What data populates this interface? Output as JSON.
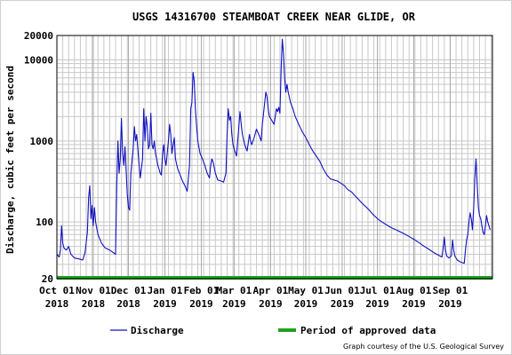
{
  "chart_data": {
    "type": "line",
    "title": "USGS 14316700 STEAMBOAT CREEK NEAR GLIDE, OR",
    "ylabel": "Discharge, cubic feet per second",
    "xlabel": "",
    "yscale": "log",
    "ylim": [
      20,
      20000
    ],
    "ytick_labels": [
      "20000",
      "10000",
      "1000",
      "100",
      "20"
    ],
    "ytick_values": [
      20000,
      10000,
      1000,
      100,
      20
    ],
    "xlim": [
      "2018-10-01",
      "2019-10-07"
    ],
    "xticks": [
      {
        "date": "2018-10-01",
        "line1": "Oct 01",
        "line2": "2018"
      },
      {
        "date": "2018-11-01",
        "line1": "Nov 01",
        "line2": "2018"
      },
      {
        "date": "2018-12-01",
        "line1": "Dec 01",
        "line2": "2018"
      },
      {
        "date": "2019-01-01",
        "line1": "Jan 01",
        "line2": "2019"
      },
      {
        "date": "2019-02-01",
        "line1": "Feb 01",
        "line2": "2019"
      },
      {
        "date": "2019-03-01",
        "line1": "Mar 01",
        "line2": "2019"
      },
      {
        "date": "2019-04-01",
        "line1": "Apr 01",
        "line2": "2019"
      },
      {
        "date": "2019-05-01",
        "line1": "May 01",
        "line2": "2019"
      },
      {
        "date": "2019-06-01",
        "line1": "Jun 01",
        "line2": "2019"
      },
      {
        "date": "2019-07-01",
        "line1": "Jul 01",
        "line2": "2019"
      },
      {
        "date": "2019-08-01",
        "line1": "Aug 01",
        "line2": "2019"
      },
      {
        "date": "2019-09-01",
        "line1": "Sep 01",
        "line2": "2019"
      }
    ],
    "grid": true,
    "legend_position": "bottom",
    "series": [
      {
        "name": "Discharge",
        "color": "#1010c0",
        "points": [
          [
            "2018-10-01",
            40
          ],
          [
            "2018-10-03",
            37
          ],
          [
            "2018-10-04",
            45
          ],
          [
            "2018-10-05",
            90
          ],
          [
            "2018-10-06",
            55
          ],
          [
            "2018-10-07",
            48
          ],
          [
            "2018-10-09",
            45
          ],
          [
            "2018-10-11",
            50
          ],
          [
            "2018-10-13",
            40
          ],
          [
            "2018-10-16",
            36
          ],
          [
            "2018-10-20",
            35
          ],
          [
            "2018-10-23",
            34
          ],
          [
            "2018-10-25",
            42
          ],
          [
            "2018-10-27",
            75
          ],
          [
            "2018-10-28",
            200
          ],
          [
            "2018-10-29",
            280
          ],
          [
            "2018-10-30",
            110
          ],
          [
            "2018-10-31",
            160
          ],
          [
            "2018-11-01",
            90
          ],
          [
            "2018-11-02",
            150
          ],
          [
            "2018-11-03",
            100
          ],
          [
            "2018-11-05",
            70
          ],
          [
            "2018-11-08",
            55
          ],
          [
            "2018-11-11",
            48
          ],
          [
            "2018-11-15",
            45
          ],
          [
            "2018-11-18",
            42
          ],
          [
            "2018-11-20",
            40
          ],
          [
            "2018-11-21",
            300
          ],
          [
            "2018-11-22",
            1000
          ],
          [
            "2018-11-23",
            400
          ],
          [
            "2018-11-24",
            600
          ],
          [
            "2018-11-25",
            1900
          ],
          [
            "2018-11-26",
            700
          ],
          [
            "2018-11-27",
            500
          ],
          [
            "2018-11-28",
            850
          ],
          [
            "2018-11-30",
            220
          ],
          [
            "2018-12-01",
            150
          ],
          [
            "2018-12-02",
            140
          ],
          [
            "2018-12-03",
            400
          ],
          [
            "2018-12-05",
            800
          ],
          [
            "2018-12-06",
            1500
          ],
          [
            "2018-12-07",
            1000
          ],
          [
            "2018-12-08",
            1200
          ],
          [
            "2018-12-10",
            500
          ],
          [
            "2018-12-11",
            350
          ],
          [
            "2018-12-13",
            600
          ],
          [
            "2018-12-14",
            2500
          ],
          [
            "2018-12-15",
            1000
          ],
          [
            "2018-12-16",
            2000
          ],
          [
            "2018-12-17",
            1500
          ],
          [
            "2018-12-18",
            800
          ],
          [
            "2018-12-19",
            900
          ],
          [
            "2018-12-20",
            2200
          ],
          [
            "2018-12-21",
            900
          ],
          [
            "2018-12-22",
            800
          ],
          [
            "2018-12-23",
            1000
          ],
          [
            "2018-12-24",
            700
          ],
          [
            "2018-12-25",
            600
          ],
          [
            "2018-12-26",
            500
          ],
          [
            "2018-12-27",
            450
          ],
          [
            "2018-12-28",
            400
          ],
          [
            "2018-12-29",
            380
          ],
          [
            "2018-12-30",
            700
          ],
          [
            "2018-12-31",
            900
          ],
          [
            "2019-01-01",
            600
          ],
          [
            "2019-01-02",
            500
          ],
          [
            "2019-01-04",
            1000
          ],
          [
            "2019-01-05",
            1600
          ],
          [
            "2019-01-06",
            1200
          ],
          [
            "2019-01-07",
            700
          ],
          [
            "2019-01-08",
            900
          ],
          [
            "2019-01-09",
            1100
          ],
          [
            "2019-01-10",
            600
          ],
          [
            "2019-01-12",
            450
          ],
          [
            "2019-01-14",
            380
          ],
          [
            "2019-01-16",
            320
          ],
          [
            "2019-01-18",
            280
          ],
          [
            "2019-01-20",
            240
          ],
          [
            "2019-01-22",
            500
          ],
          [
            "2019-01-23",
            2500
          ],
          [
            "2019-01-24",
            3000
          ],
          [
            "2019-01-25",
            7000
          ],
          [
            "2019-01-26",
            5500
          ],
          [
            "2019-01-27",
            2500
          ],
          [
            "2019-01-28",
            1500
          ],
          [
            "2019-01-29",
            1000
          ],
          [
            "2019-01-31",
            700
          ],
          [
            "2019-02-02",
            600
          ],
          [
            "2019-02-04",
            500
          ],
          [
            "2019-02-06",
            400
          ],
          [
            "2019-02-08",
            350
          ],
          [
            "2019-02-09",
            500
          ],
          [
            "2019-02-10",
            600
          ],
          [
            "2019-02-11",
            550
          ],
          [
            "2019-02-13",
            400
          ],
          [
            "2019-02-15",
            330
          ],
          [
            "2019-02-18",
            320
          ],
          [
            "2019-02-20",
            310
          ],
          [
            "2019-02-22",
            400
          ],
          [
            "2019-02-23",
            1200
          ],
          [
            "2019-02-24",
            2500
          ],
          [
            "2019-02-25",
            1800
          ],
          [
            "2019-02-26",
            2000
          ],
          [
            "2019-02-27",
            1200
          ],
          [
            "2019-02-28",
            900
          ],
          [
            "2019-03-01",
            800
          ],
          [
            "2019-03-03",
            650
          ],
          [
            "2019-03-05",
            1500
          ],
          [
            "2019-03-06",
            2300
          ],
          [
            "2019-03-07",
            1600
          ],
          [
            "2019-03-08",
            1200
          ],
          [
            "2019-03-10",
            900
          ],
          [
            "2019-03-12",
            750
          ],
          [
            "2019-03-14",
            1200
          ],
          [
            "2019-03-15",
            1000
          ],
          [
            "2019-03-16",
            900
          ],
          [
            "2019-03-18",
            1100
          ],
          [
            "2019-03-20",
            1400
          ],
          [
            "2019-03-22",
            1200
          ],
          [
            "2019-03-24",
            1000
          ],
          [
            "2019-03-25",
            1600
          ],
          [
            "2019-03-26",
            2200
          ],
          [
            "2019-03-27",
            3000
          ],
          [
            "2019-03-28",
            4000
          ],
          [
            "2019-03-29",
            3500
          ],
          [
            "2019-03-30",
            2500
          ],
          [
            "2019-03-31",
            2000
          ],
          [
            "2019-04-02",
            1800
          ],
          [
            "2019-04-04",
            1600
          ],
          [
            "2019-04-05",
            2000
          ],
          [
            "2019-04-06",
            2500
          ],
          [
            "2019-04-07",
            2300
          ],
          [
            "2019-04-08",
            2600
          ],
          [
            "2019-04-09",
            2200
          ],
          [
            "2019-04-10",
            8000
          ],
          [
            "2019-04-11",
            18000
          ],
          [
            "2019-04-12",
            12000
          ],
          [
            "2019-04-13",
            6000
          ],
          [
            "2019-04-14",
            4000
          ],
          [
            "2019-04-15",
            5000
          ],
          [
            "2019-04-16",
            4000
          ],
          [
            "2019-04-18",
            3000
          ],
          [
            "2019-04-20",
            2500
          ],
          [
            "2019-04-22",
            2000
          ],
          [
            "2019-04-25",
            1600
          ],
          [
            "2019-04-28",
            1300
          ],
          [
            "2019-05-01",
            1100
          ],
          [
            "2019-05-04",
            900
          ],
          [
            "2019-05-07",
            750
          ],
          [
            "2019-05-10",
            650
          ],
          [
            "2019-05-13",
            560
          ],
          [
            "2019-05-16",
            450
          ],
          [
            "2019-05-19",
            380
          ],
          [
            "2019-05-22",
            340
          ],
          [
            "2019-05-25",
            330
          ],
          [
            "2019-05-28",
            320
          ],
          [
            "2019-05-31",
            300
          ],
          [
            "2019-06-03",
            280
          ],
          [
            "2019-06-06",
            250
          ],
          [
            "2019-06-09",
            235
          ],
          [
            "2019-06-12",
            210
          ],
          [
            "2019-06-15",
            190
          ],
          [
            "2019-06-18",
            170
          ],
          [
            "2019-06-21",
            155
          ],
          [
            "2019-06-24",
            140
          ],
          [
            "2019-06-27",
            125
          ],
          [
            "2019-07-01",
            110
          ],
          [
            "2019-07-05",
            100
          ],
          [
            "2019-07-09",
            92
          ],
          [
            "2019-07-13",
            85
          ],
          [
            "2019-07-17",
            80
          ],
          [
            "2019-07-21",
            75
          ],
          [
            "2019-07-25",
            70
          ],
          [
            "2019-07-29",
            65
          ],
          [
            "2019-08-02",
            60
          ],
          [
            "2019-08-06",
            55
          ],
          [
            "2019-08-10",
            50
          ],
          [
            "2019-08-14",
            46
          ],
          [
            "2019-08-18",
            42
          ],
          [
            "2019-08-22",
            39
          ],
          [
            "2019-08-25",
            37
          ],
          [
            "2019-08-26",
            48
          ],
          [
            "2019-08-27",
            65
          ],
          [
            "2019-08-28",
            45
          ],
          [
            "2019-08-29",
            38
          ],
          [
            "2019-08-31",
            36
          ],
          [
            "2019-09-02",
            38
          ],
          [
            "2019-09-03",
            60
          ],
          [
            "2019-09-04",
            45
          ],
          [
            "2019-09-05",
            38
          ],
          [
            "2019-09-07",
            34
          ],
          [
            "2019-09-10",
            32
          ],
          [
            "2019-09-13",
            31
          ],
          [
            "2019-09-14",
            45
          ],
          [
            "2019-09-15",
            60
          ],
          [
            "2019-09-16",
            70
          ],
          [
            "2019-09-17",
            100
          ],
          [
            "2019-09-18",
            130
          ],
          [
            "2019-09-19",
            110
          ],
          [
            "2019-09-20",
            80
          ],
          [
            "2019-09-21",
            150
          ],
          [
            "2019-09-22",
            350
          ],
          [
            "2019-09-23",
            600
          ],
          [
            "2019-09-24",
            300
          ],
          [
            "2019-09-25",
            150
          ],
          [
            "2019-09-26",
            120
          ],
          [
            "2019-09-27",
            110
          ],
          [
            "2019-09-28",
            90
          ],
          [
            "2019-09-29",
            75
          ],
          [
            "2019-09-30",
            70
          ],
          [
            "2019-10-01",
            90
          ],
          [
            "2019-10-02",
            120
          ],
          [
            "2019-10-03",
            100
          ],
          [
            "2019-10-04",
            90
          ],
          [
            "2019-10-05",
            80
          ]
        ]
      }
    ],
    "approved_period": {
      "name": "Period of approved data",
      "color": "#22a022",
      "start": "2018-10-01",
      "end": "2019-10-07"
    }
  },
  "credit": "Graph courtesy of the U.S. Geological Survey",
  "colors": {
    "grid": "#c8c8c8",
    "axis": "#000000",
    "background": "#ffffff"
  }
}
